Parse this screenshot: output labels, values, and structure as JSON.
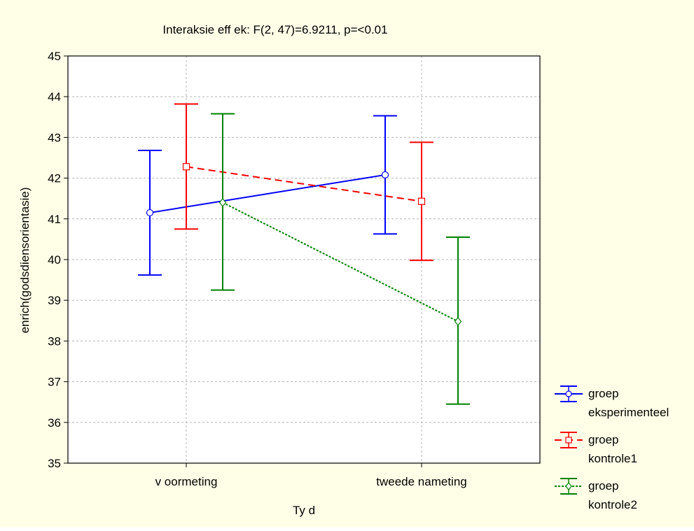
{
  "chart_data": {
    "type": "line",
    "title": "Interaksie eff ek: F(2, 47)=6.9211, p=<0.01",
    "xlabel": "Ty d",
    "ylabel": "enrich(godsdiensorientasie)",
    "categories": [
      "v oormeting",
      "tweede nameting"
    ],
    "ylim": [
      35,
      45
    ],
    "yticks": [
      35,
      36,
      37,
      38,
      39,
      40,
      41,
      42,
      43,
      44,
      45
    ],
    "grid": true,
    "legend_position": "right-bottom",
    "series": [
      {
        "name": [
          "groep",
          "eksperimenteel"
        ],
        "color": "#0000ff",
        "line_style": "solid",
        "marker": "circle",
        "values": [
          41.15,
          42.08
        ],
        "lower": [
          39.62,
          40.63
        ],
        "upper": [
          42.68,
          43.53
        ]
      },
      {
        "name": [
          "groep",
          "kontrole1"
        ],
        "color": "#ff0000",
        "line_style": "dashed",
        "marker": "square",
        "values": [
          42.28,
          41.43
        ],
        "lower": [
          40.75,
          39.98
        ],
        "upper": [
          43.82,
          42.88
        ]
      },
      {
        "name": [
          "groep",
          "kontrole2"
        ],
        "color": "#008000",
        "line_style": "dotted",
        "marker": "diamond",
        "values": [
          41.4,
          38.48
        ],
        "lower": [
          39.25,
          36.45
        ],
        "upper": [
          43.58,
          40.55
        ]
      }
    ]
  }
}
